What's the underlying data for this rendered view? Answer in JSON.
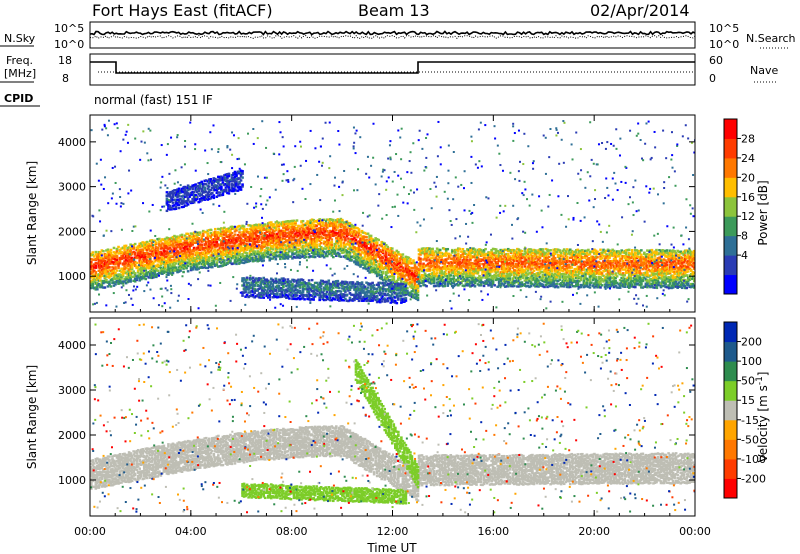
{
  "header": {
    "station": "Fort Hays East (fitACF)",
    "beam": "Beam 13",
    "date": "02/Apr/2014"
  },
  "noise_panel": {
    "left_label": "N.Sky",
    "right_label": "N.Search",
    "left_ticks": [
      "10^5",
      "10^0"
    ],
    "right_ticks": [
      "10^5",
      "10^0"
    ]
  },
  "freq_panel": {
    "left_label_line1": "Freq.",
    "left_label_line2": "[MHz]",
    "right_label": "Nave",
    "left_ticks": [
      "18",
      "8"
    ],
    "right_ticks": [
      "60",
      "0"
    ],
    "cpid_label": "CPID",
    "cpid_text": "normal (fast) 151 IF"
  },
  "colors": {
    "power_scale": [
      "#0000ff",
      "#2a3cb4",
      "#2e6f96",
      "#3c9a5a",
      "#8cc43c",
      "#ffbe00",
      "#ff7800",
      "#ff3c00",
      "#ff0000"
    ],
    "velocity_scale": [
      "#0028b4",
      "#1e5a8c",
      "#2e8c4e",
      "#7ccd28",
      "#bebeb4",
      "#ffa500",
      "#ff7800",
      "#ff3c00",
      "#ff0000"
    ]
  },
  "chart_data": [
    {
      "type": "heatmap",
      "name": "power",
      "xlabel": "Time UT",
      "ylabel": "Slant Range [km]",
      "x_ticks": [
        "00:00",
        "04:00",
        "08:00",
        "12:00",
        "16:00",
        "20:00",
        "00:00"
      ],
      "xlim_hours": [
        0,
        24
      ],
      "ylim": [
        200,
        4600
      ],
      "y_ticks": [
        1000,
        2000,
        3000,
        4000
      ],
      "colorbar_label": "Power [dB]",
      "colorbar_ticks": [
        "28",
        "24",
        "20",
        "16",
        "12",
        "8",
        "4"
      ],
      "colorbar_range": [
        0,
        30
      ],
      "bands": [
        {
          "label": "main scatter band",
          "time_hours": [
            0.0,
            13.0
          ],
          "range_km_start": 1200,
          "range_km_peak": 1950,
          "peak_hour": 10.0,
          "range_km_end": 950,
          "power_db_core": 26
        },
        {
          "label": "post-gap band",
          "time_hours": [
            13.0,
            24.0
          ],
          "range_km_start": 1300,
          "range_km_end": 1250,
          "power_db_core": 24
        },
        {
          "label": "lower branch",
          "time_hours": [
            6.0,
            12.5
          ],
          "range_km_start": 800,
          "range_km_end": 650,
          "power_db_core": 10
        },
        {
          "label": "upper branch",
          "time_hours": [
            3.0,
            6.0
          ],
          "range_km_start": 2700,
          "range_km_end": 3200,
          "power_db_core": 6
        }
      ]
    },
    {
      "type": "heatmap",
      "name": "velocity",
      "xlabel": "Time UT",
      "ylabel": "Slant Range [km]",
      "x_ticks": [
        "00:00",
        "04:00",
        "08:00",
        "12:00",
        "16:00",
        "20:00",
        "00:00"
      ],
      "xlim_hours": [
        0,
        24
      ],
      "ylim": [
        200,
        4600
      ],
      "y_ticks": [
        1000,
        2000,
        3000,
        4000
      ],
      "colorbar_label": "Velocity [m s^-1]",
      "colorbar_ticks": [
        "200",
        "100",
        "50",
        "15",
        "-15",
        "-50",
        "-100",
        "-200"
      ],
      "colorbar_range": [
        -250,
        250
      ],
      "bands": [
        {
          "label": "ground scatter band",
          "time_hours": [
            0.0,
            13.0
          ],
          "range_km_start": 1200,
          "range_km_peak": 1950,
          "peak_hour": 10.0,
          "range_km_end": 950,
          "velocity_ms": 0
        },
        {
          "label": "post-gap ground scatter",
          "time_hours": [
            13.0,
            24.0
          ],
          "range_km_start": 1300,
          "range_km_end": 1350,
          "velocity_ms": 0
        },
        {
          "label": "lower branch",
          "time_hours": [
            6.0,
            12.5
          ],
          "range_km_start": 800,
          "range_km_end": 650,
          "velocity_ms": 40
        },
        {
          "label": "ionospheric streak",
          "time_hours": [
            10.5,
            13.0
          ],
          "range_km_start": 3500,
          "range_km_end": 1100,
          "velocity_ms": 40
        }
      ]
    }
  ]
}
